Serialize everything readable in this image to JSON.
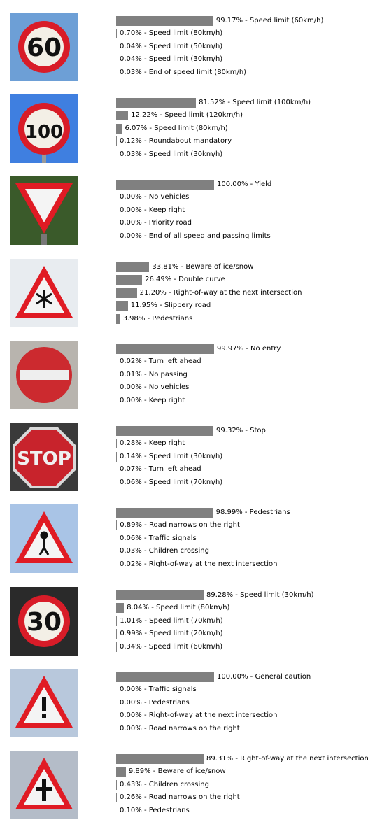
{
  "bar_color": "#808080",
  "chart_data": [
    {
      "type": "bar",
      "sign_icon": "speed-limit-60-sign",
      "predictions": [
        {
          "percent": 99.17,
          "text": "99.17% - Speed limit (60km/h)"
        },
        {
          "percent": 0.7,
          "text": "0.70% - Speed limit (80km/h)"
        },
        {
          "percent": 0.04,
          "text": "0.04% - Speed limit (50km/h)"
        },
        {
          "percent": 0.04,
          "text": "0.04% - Speed limit (30km/h)"
        },
        {
          "percent": 0.03,
          "text": "0.03% - End of speed limit (80km/h)"
        }
      ]
    },
    {
      "type": "bar",
      "sign_icon": "speed-limit-100-sign",
      "predictions": [
        {
          "percent": 81.52,
          "text": "81.52% - Speed limit (100km/h)"
        },
        {
          "percent": 12.22,
          "text": "12.22% - Speed limit (120km/h)"
        },
        {
          "percent": 6.07,
          "text": "6.07% - Speed limit (80km/h)"
        },
        {
          "percent": 0.12,
          "text": "0.12% - Roundabout mandatory"
        },
        {
          "percent": 0.03,
          "text": "0.03% - Speed limit (30km/h)"
        }
      ]
    },
    {
      "type": "bar",
      "sign_icon": "yield-sign",
      "predictions": [
        {
          "percent": 100.0,
          "text": "100.00% - Yield"
        },
        {
          "percent": 0.0,
          "text": "0.00% - No vehicles"
        },
        {
          "percent": 0.0,
          "text": "0.00% - Keep right"
        },
        {
          "percent": 0.0,
          "text": "0.00% - Priority road"
        },
        {
          "percent": 0.0,
          "text": "0.00% - End of all speed and passing limits"
        }
      ]
    },
    {
      "type": "bar",
      "sign_icon": "ice-snow-warning-sign",
      "predictions": [
        {
          "percent": 33.81,
          "text": "33.81% - Beware of ice/snow"
        },
        {
          "percent": 26.49,
          "text": "26.49% - Double curve"
        },
        {
          "percent": 21.2,
          "text": "21.20% - Right-of-way at the next intersection"
        },
        {
          "percent": 11.95,
          "text": "11.95% - Slippery road"
        },
        {
          "percent": 3.98,
          "text": "3.98% - Pedestrians"
        }
      ]
    },
    {
      "type": "bar",
      "sign_icon": "no-entry-sign",
      "predictions": [
        {
          "percent": 99.97,
          "text": "99.97% - No entry"
        },
        {
          "percent": 0.02,
          "text": "0.02% - Turn left ahead"
        },
        {
          "percent": 0.01,
          "text": "0.01% - No passing"
        },
        {
          "percent": 0.0,
          "text": "0.00% - No vehicles"
        },
        {
          "percent": 0.0,
          "text": "0.00% - Keep right"
        }
      ]
    },
    {
      "type": "bar",
      "sign_icon": "stop-sign",
      "sign_text": "STOP",
      "predictions": [
        {
          "percent": 99.32,
          "text": "99.32% - Stop"
        },
        {
          "percent": 0.28,
          "text": "0.28% - Keep right"
        },
        {
          "percent": 0.14,
          "text": "0.14% - Speed limit (30km/h)"
        },
        {
          "percent": 0.07,
          "text": "0.07% - Turn left ahead"
        },
        {
          "percent": 0.06,
          "text": "0.06% - Speed limit (70km/h)"
        }
      ]
    },
    {
      "type": "bar",
      "sign_icon": "pedestrians-warning-sign",
      "predictions": [
        {
          "percent": 98.99,
          "text": "98.99% - Pedestrians"
        },
        {
          "percent": 0.89,
          "text": "0.89% - Road narrows on the right"
        },
        {
          "percent": 0.06,
          "text": "0.06% - Traffic signals"
        },
        {
          "percent": 0.03,
          "text": "0.03% - Children crossing"
        },
        {
          "percent": 0.02,
          "text": "0.02% - Right-of-way at the next intersection"
        }
      ]
    },
    {
      "type": "bar",
      "sign_icon": "speed-limit-30-sign",
      "predictions": [
        {
          "percent": 89.28,
          "text": "89.28% - Speed limit (30km/h)"
        },
        {
          "percent": 8.04,
          "text": "8.04% - Speed limit (80km/h)"
        },
        {
          "percent": 1.01,
          "text": "1.01% - Speed limit (70km/h)"
        },
        {
          "percent": 0.99,
          "text": "0.99% - Speed limit (20km/h)"
        },
        {
          "percent": 0.34,
          "text": "0.34% - Speed limit (60km/h)"
        }
      ]
    },
    {
      "type": "bar",
      "sign_icon": "general-caution-sign",
      "predictions": [
        {
          "percent": 100.0,
          "text": "100.00% - General caution"
        },
        {
          "percent": 0.0,
          "text": "0.00% - Traffic signals"
        },
        {
          "percent": 0.0,
          "text": "0.00% - Pedestrians"
        },
        {
          "percent": 0.0,
          "text": "0.00% - Right-of-way at the next intersection"
        },
        {
          "percent": 0.0,
          "text": "0.00% - Road narrows on the right"
        }
      ]
    },
    {
      "type": "bar",
      "sign_icon": "right-of-way-sign",
      "predictions": [
        {
          "percent": 89.31,
          "text": "89.31% - Right-of-way at the next intersection"
        },
        {
          "percent": 9.89,
          "text": "9.89% - Beware of ice/snow"
        },
        {
          "percent": 0.43,
          "text": "0.43% - Children crossing"
        },
        {
          "percent": 0.26,
          "text": "0.26% - Road narrows on the right"
        },
        {
          "percent": 0.1,
          "text": "0.10% - Pedestrians"
        }
      ]
    }
  ]
}
